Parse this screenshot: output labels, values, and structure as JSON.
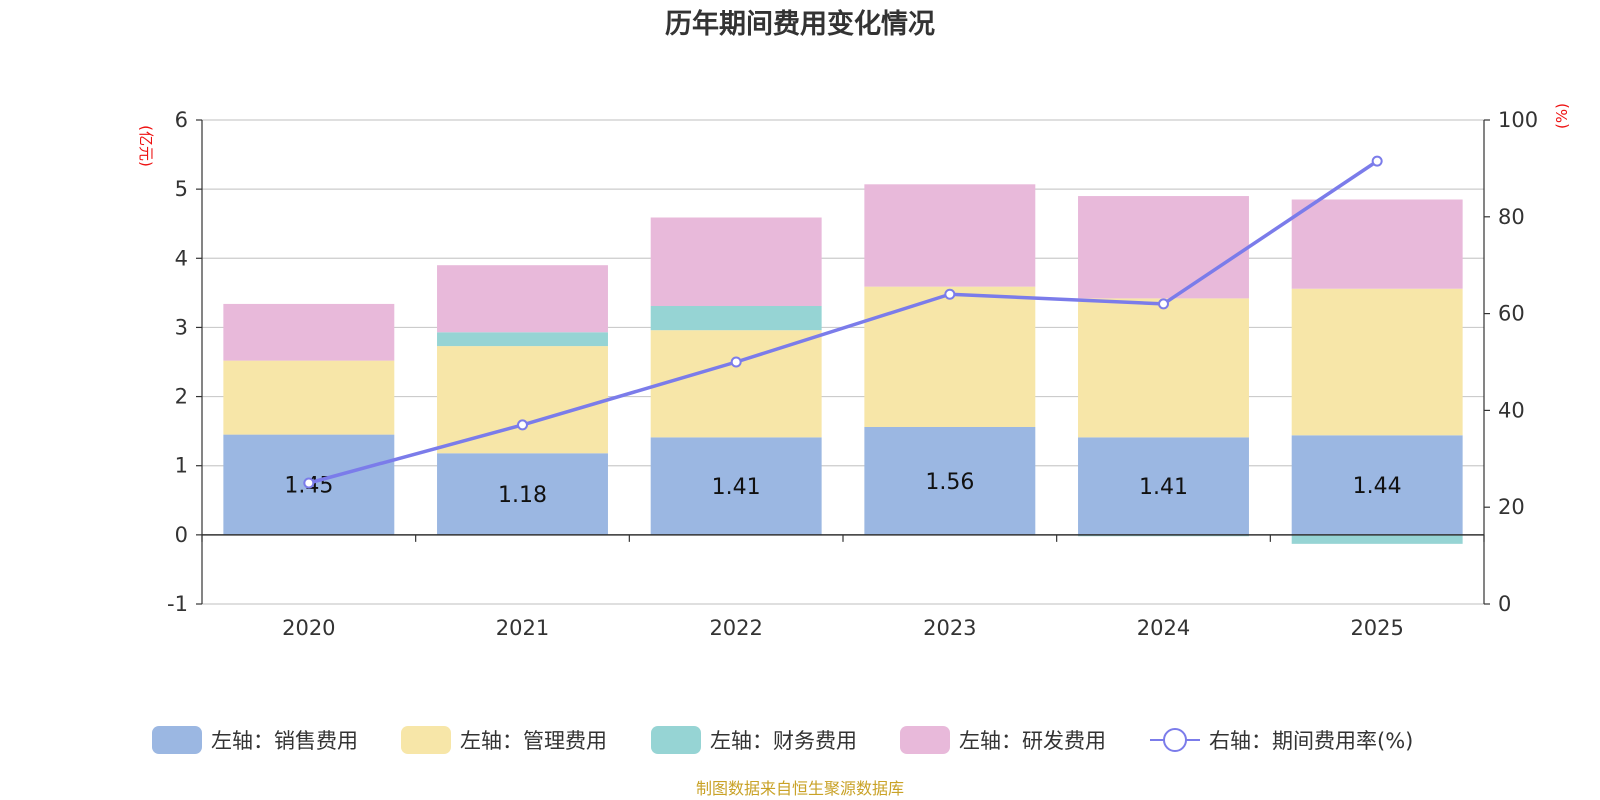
{
  "chart_data": {
    "type": "bar",
    "title": "历年期间费用变化情况",
    "left_axis_unit": "(亿元)",
    "right_axis_unit": "(%)",
    "categories": [
      "2020",
      "2021",
      "2022",
      "2023",
      "2024",
      "2025"
    ],
    "left_ylim": [
      -1,
      6
    ],
    "left_ticks": [
      "-1",
      "0",
      "1",
      "2",
      "3",
      "4",
      "5",
      "6"
    ],
    "right_ylim": [
      0,
      100
    ],
    "right_ticks": [
      "0",
      "20",
      "40",
      "60",
      "80",
      "100"
    ],
    "series": [
      {
        "name": "左轴：销售费用",
        "type": "bar",
        "axis": "left",
        "color": "#9bb7e2",
        "values": [
          1.45,
          1.18,
          1.41,
          1.56,
          1.41,
          1.44
        ],
        "labels": [
          "1.45",
          "1.18",
          "1.41",
          "1.56",
          "1.41",
          "1.44"
        ]
      },
      {
        "name": "左轴：管理费用",
        "type": "bar",
        "axis": "left",
        "color": "#f7e6a8",
        "values": [
          1.07,
          1.55,
          1.55,
          2.03,
          2.01,
          2.12
        ]
      },
      {
        "name": "左轴：财务费用",
        "type": "bar",
        "axis": "left",
        "color": "#96d4d4",
        "values": [
          0.0,
          0.2,
          0.35,
          0.0,
          -0.02,
          -0.13
        ]
      },
      {
        "name": "左轴：研发费用",
        "type": "bar",
        "axis": "left",
        "color": "#e8b9da",
        "values": [
          0.82,
          0.97,
          1.28,
          1.48,
          1.48,
          1.29
        ]
      },
      {
        "name": "右轴：期间费用率(%)",
        "type": "line",
        "axis": "right",
        "color": "#7b7cea",
        "values": [
          25.0,
          37.0,
          50.0,
          64.0,
          62.0,
          91.5
        ]
      }
    ],
    "source": "制图数据来自恒生聚源数据库"
  }
}
